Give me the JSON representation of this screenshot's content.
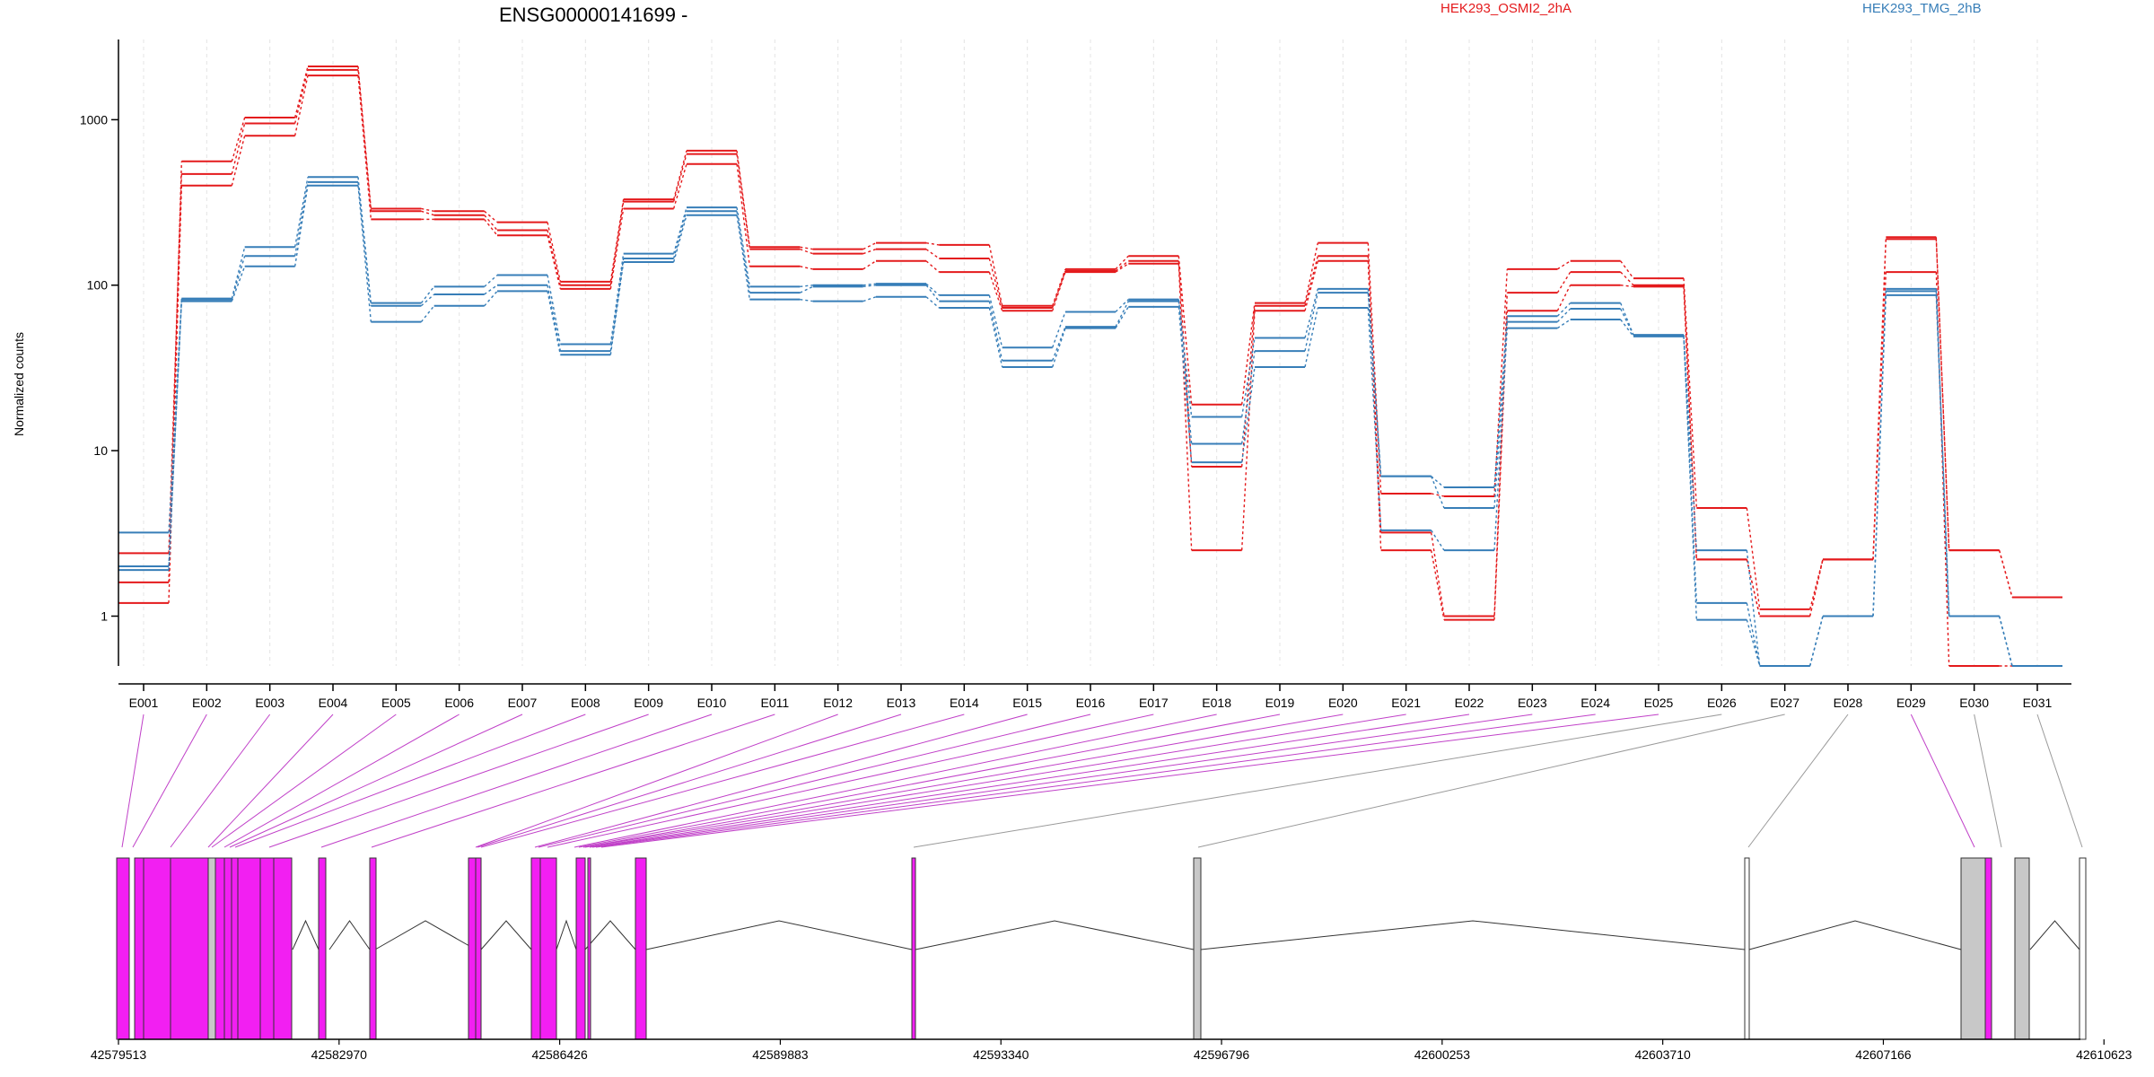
{
  "chart_data": {
    "type": "line",
    "title": "ENSG00000141699 -",
    "ylabel": "Normalized counts",
    "y_scale": "log",
    "ylim": [
      0.5,
      2500
    ],
    "yticks": [
      1,
      10,
      100,
      1000
    ],
    "ytick_labels": [
      "1",
      "10",
      "100",
      "1000"
    ],
    "grid_vertical": true,
    "categories": [
      "E001",
      "E002",
      "E003",
      "E004",
      "E005",
      "E006",
      "E007",
      "E008",
      "E009",
      "E010",
      "E011",
      "E012",
      "E013",
      "E014",
      "E015",
      "E016",
      "E017",
      "E018",
      "E019",
      "E020",
      "E021",
      "E022",
      "E023",
      "E024",
      "E025",
      "E026",
      "E027",
      "E028",
      "E029",
      "E030",
      "E031"
    ],
    "series": [
      {
        "name": "HEK293_OSMI2_2hA",
        "color": "#e41a1c",
        "values": [
          1.6,
          560,
          1030,
          2100,
          290,
          280,
          240,
          105,
          330,
          650,
          170,
          165,
          180,
          175,
          75,
          125,
          150,
          19,
          78,
          180,
          5.5,
          5.3,
          125,
          140,
          110,
          4.5,
          1.1,
          2.2,
          195,
          2.5,
          1.3
        ]
      },
      {
        "name": "",
        "color": "#e41a1c",
        "values": [
          2.4,
          470,
          950,
          2000,
          280,
          265,
          215,
          100,
          320,
          620,
          165,
          155,
          165,
          145,
          73,
          122,
          140,
          8,
          75,
          150,
          3.2,
          1.0,
          90,
          120,
          100,
          2.2,
          1.0,
          2.2,
          190,
          2.5,
          1.3
        ]
      },
      {
        "name": "",
        "color": "#e41a1c",
        "values": [
          1.2,
          400,
          800,
          1850,
          250,
          250,
          200,
          95,
          290,
          540,
          130,
          125,
          140,
          120,
          70,
          120,
          135,
          2.5,
          70,
          140,
          2.5,
          0.95,
          70,
          100,
          98,
          2.2,
          1.0,
          2.2,
          120,
          0.5,
          0.5
        ]
      },
      {
        "name": "HEK293_TMG_2hB",
        "color": "#377eb8",
        "values": [
          3.2,
          83,
          170,
          450,
          78,
          98,
          115,
          44,
          155,
          295,
          98,
          100,
          102,
          87,
          42,
          69,
          82,
          16,
          48,
          95,
          7,
          6,
          65,
          78,
          50,
          2.5,
          0.5,
          1.0,
          95,
          1.0,
          0.5
        ]
      },
      {
        "name": "",
        "color": "#377eb8",
        "values": [
          2.0,
          82,
          150,
          420,
          75,
          88,
          100,
          40,
          145,
          280,
          90,
          98,
          100,
          80,
          35,
          56,
          80,
          11,
          40,
          90,
          7,
          4.5,
          60,
          72,
          50,
          1.2,
          0.5,
          1.0,
          92,
          1.0,
          0.5
        ]
      },
      {
        "name": "",
        "color": "#377eb8",
        "values": [
          1.9,
          80,
          130,
          400,
          60,
          75,
          92,
          38,
          138,
          265,
          82,
          80,
          85,
          73,
          32,
          55,
          74,
          8.5,
          32,
          73,
          3.3,
          2.5,
          55,
          62,
          49,
          0.95,
          0.5,
          1.0,
          87,
          1.0,
          0.5
        ]
      }
    ],
    "exon_colors": [
      "magenta",
      "magenta",
      "magenta",
      "magenta",
      "magenta",
      "magenta",
      "magenta",
      "magenta",
      "magenta",
      "magenta",
      "magenta",
      "magenta",
      "magenta",
      "magenta",
      "magenta",
      "magenta",
      "magenta",
      "magenta",
      "magenta",
      "magenta",
      "magenta",
      "magenta",
      "magenta",
      "magenta",
      "magenta",
      "gray",
      "gray",
      "gray",
      "magenta",
      "gray",
      "white"
    ],
    "genomic_axis_labels": [
      "42579513",
      "42582970",
      "42586426",
      "42589883",
      "42593340",
      "42596796",
      "42600253",
      "42603710",
      "42607166",
      "42610623"
    ]
  }
}
